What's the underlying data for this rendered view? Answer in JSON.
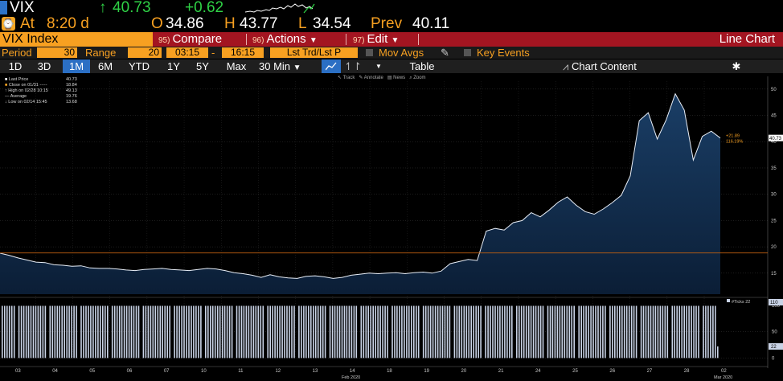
{
  "ticker": {
    "symbol": "VIX",
    "last": "40.73",
    "change": "+0.62",
    "time_label": "At",
    "time": "8:20 d",
    "open_label": "O",
    "open": "34.86",
    "high_label": "H",
    "high": "43.77",
    "low_label": "L",
    "low": "34.54",
    "prev_label": "Prev",
    "prev": "40.11"
  },
  "function_bar": {
    "security": "VIX Index",
    "compare_num": "95)",
    "compare": "Compare",
    "actions_num": "96)",
    "actions": "Actions",
    "edit_num": "97)",
    "edit": "Edit",
    "view": "Line Chart"
  },
  "settings": {
    "period_label": "Period",
    "period_value": "30",
    "range_label": "Range",
    "range_value": "20",
    "time_from": "03:15",
    "time_to": "16:15",
    "mode": "Lst Trd/Lst P",
    "mov_avgs": "Mov Avgs",
    "key_events": "Key Events"
  },
  "timeframes": [
    "1D",
    "3D",
    "1M",
    "6M",
    "YTD",
    "1Y",
    "5Y",
    "Max"
  ],
  "active_timeframe": "1M",
  "interval": "30 Min",
  "table_label": "Table",
  "chart_content_label": "Chart Content",
  "legend": {
    "rows": [
      {
        "label": "Last Price",
        "value": "40.73"
      },
      {
        "label": "Close on 01/31 -----",
        "value": "18.84"
      },
      {
        "label": "High on 02/28 10:15",
        "value": "49.13"
      },
      {
        "label": "Average",
        "value": "19.76"
      },
      {
        "label": "Low on 02/14 15:45",
        "value": "13.68"
      }
    ]
  },
  "mini_tools": [
    "Track",
    "Annotate",
    "News",
    "Zoom"
  ],
  "price_labels": {
    "last": "40.73",
    "change": "+21.89",
    "pct": "116.19%"
  },
  "ticks_label": "#Ticks 22",
  "colors": {
    "accent_orange": "#f7a021",
    "function_red": "#a31521",
    "active_blue": "#2b6fc4",
    "up_green": "#2fd246",
    "area_fill": "#0f2a4a"
  },
  "chart_data": {
    "type": "area",
    "y_ticks": [
      15,
      20,
      25,
      30,
      35,
      40,
      45,
      50
    ],
    "ylim": [
      11,
      51.5
    ],
    "x_ticks": [
      "03",
      "04",
      "05",
      "06",
      "07",
      "10",
      "11",
      "12",
      "13",
      "14",
      "18",
      "19",
      "20",
      "21",
      "24",
      "25",
      "26",
      "27",
      "28",
      "02"
    ],
    "x_month_labels": [
      "Feb 2020",
      "Mar 2020"
    ],
    "reference_line": 18.84,
    "series": [
      {
        "values": [
          18.8,
          18.4,
          17.9,
          17.5,
          17.1,
          17.0,
          16.6,
          16.5,
          16.3,
          16.4,
          16.0,
          15.9,
          15.9,
          15.8,
          15.6,
          15.5,
          15.7,
          15.8,
          15.9,
          15.7,
          15.6,
          15.5,
          15.7,
          15.9,
          15.8,
          15.5,
          15.1,
          14.9,
          14.6,
          14.2,
          14.7,
          14.3,
          14.1,
          14.0,
          14.4,
          14.5,
          14.3,
          14.0,
          14.2,
          14.6,
          14.8,
          15.0,
          14.9,
          15.0,
          15.1,
          14.9,
          15.1,
          15.2,
          15.0,
          15.4,
          16.8,
          17.2,
          17.6,
          17.4,
          23.0,
          23.5,
          23.2,
          24.6,
          25.0,
          26.5,
          25.7,
          27.0,
          28.5,
          29.5,
          27.9,
          26.7,
          26.2,
          27.2,
          28.4,
          29.8,
          33.5,
          44.0,
          45.5,
          40.5,
          44.2,
          49.1,
          46.0,
          36.5,
          41.0,
          42.0,
          40.7
        ]
      }
    ],
    "volume": {
      "y_ticks": [
        0,
        50,
        100
      ],
      "ylim": [
        -10,
        115
      ],
      "typical": 99,
      "last": 22
    }
  }
}
